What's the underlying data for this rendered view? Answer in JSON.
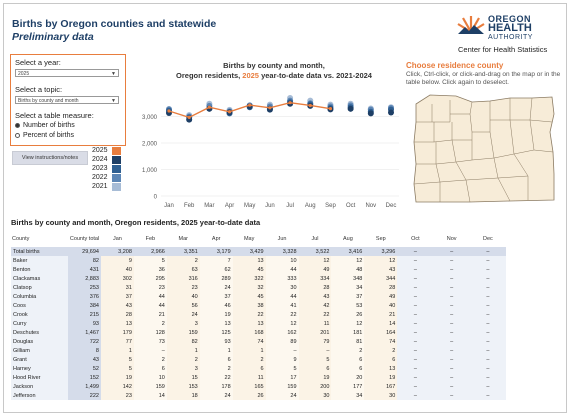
{
  "header": {
    "title": "Births by Oregon counties and statewide",
    "subtitle": "Preliminary data"
  },
  "logo": {
    "line1": "OREGON",
    "line2": "HEALTH",
    "line3": "AUTHORITY",
    "line4": "Center for Health Statistics",
    "color": "#1e3f66",
    "sun_color": "#e87d3e"
  },
  "controls": {
    "year_label": "Select a year:",
    "year_value": "2025",
    "topic_label": "Select a topic:",
    "topic_value": "Births by county and month",
    "measure_label": "Select a table measure:",
    "measure_options": [
      "Number of births",
      "Percent of births"
    ],
    "measure_selected": 0,
    "instructions_button": "View instructions/notes"
  },
  "legend": {
    "items": [
      {
        "label": "2025",
        "color": "#e87d3e"
      },
      {
        "label": "2024",
        "color": "#1e3f66"
      },
      {
        "label": "2023",
        "color": "#2f5f91"
      },
      {
        "label": "2022",
        "color": "#5d86b5"
      },
      {
        "label": "2021",
        "color": "#a7bcd6"
      }
    ]
  },
  "chart_title": {
    "line1": "Births by county and month,",
    "line2_prefix": "Oregon residents, ",
    "line2_year": "2025",
    "line2_suffix": " year-to-date data vs. 2021-2024"
  },
  "chart_data": {
    "type": "line",
    "categories": [
      "Jan",
      "Feb",
      "Mar",
      "Apr",
      "May",
      "Jun",
      "Jul",
      "Aug",
      "Sep",
      "Oct",
      "Nov",
      "Dec"
    ],
    "ylim": [
      0,
      4000
    ],
    "yticks": [
      0,
      1000,
      2000,
      3000
    ],
    "ytick_labels": [
      "0",
      "1,000",
      "2,000",
      "3,000"
    ],
    "series": [
      {
        "name": "2025",
        "color": "#e87d3e",
        "values": [
          3208,
          2966,
          3351,
          3179,
          3429,
          3328,
          3522,
          3416,
          3296,
          null,
          null,
          null
        ]
      },
      {
        "name": "2024",
        "color": "#1e3f66",
        "values": [
          3130,
          2880,
          3290,
          3160,
          3380,
          3260,
          3480,
          3400,
          3270,
          3290,
          3120,
          3150
        ]
      },
      {
        "name": "2023",
        "color": "#2f5f91",
        "values": [
          3220,
          2960,
          3300,
          3120,
          3350,
          3300,
          3540,
          3460,
          3320,
          3350,
          3180,
          3260
        ]
      },
      {
        "name": "2022",
        "color": "#5d86b5",
        "values": [
          3280,
          3000,
          3400,
          3200,
          3420,
          3380,
          3600,
          3500,
          3380,
          3420,
          3260,
          3320
        ]
      },
      {
        "name": "2021",
        "color": "#a7bcd6",
        "values": [
          3180,
          3050,
          3480,
          3250,
          3400,
          3450,
          3700,
          3600,
          3450,
          3480,
          3300,
          3350
        ]
      }
    ]
  },
  "map": {
    "heading": "Choose residence county",
    "instructions": "Click, Ctrl-click, or click-and-drag on the map or in the table below. Click again to deselect.",
    "fill_color": "#f7ecd8",
    "border_color": "#8b7b63"
  },
  "table": {
    "title": "Births by county and month, Oregon residents, 2025 year-to-date data",
    "columns": [
      "County",
      "County total",
      "Jan",
      "Feb",
      "Mar",
      "Apr",
      "May",
      "Jun",
      "Jul",
      "Aug",
      "Sep",
      "Oct",
      "Nov",
      "Dec"
    ],
    "rows": [
      [
        "Total births",
        "29,694",
        "3,208",
        "2,966",
        "3,351",
        "3,179",
        "3,429",
        "3,328",
        "3,522",
        "3,416",
        "3,296",
        "–",
        "–",
        "–"
      ],
      [
        "Baker",
        "82",
        "9",
        "5",
        "2",
        "7",
        "13",
        "10",
        "12",
        "12",
        "12",
        "–",
        "–",
        "–"
      ],
      [
        "Benton",
        "431",
        "40",
        "36",
        "63",
        "62",
        "45",
        "44",
        "49",
        "48",
        "43",
        "–",
        "–",
        "–"
      ],
      [
        "Clackamas",
        "2,883",
        "302",
        "295",
        "316",
        "289",
        "322",
        "333",
        "334",
        "348",
        "344",
        "–",
        "–",
        "–"
      ],
      [
        "Clatsop",
        "253",
        "31",
        "23",
        "23",
        "24",
        "32",
        "30",
        "28",
        "34",
        "28",
        "–",
        "–",
        "–"
      ],
      [
        "Columbia",
        "376",
        "37",
        "44",
        "40",
        "37",
        "45",
        "44",
        "43",
        "37",
        "49",
        "–",
        "–",
        "–"
      ],
      [
        "Coos",
        "384",
        "43",
        "44",
        "56",
        "46",
        "38",
        "41",
        "42",
        "53",
        "40",
        "–",
        "–",
        "–"
      ],
      [
        "Crook",
        "215",
        "28",
        "21",
        "24",
        "19",
        "22",
        "22",
        "22",
        "26",
        "21",
        "–",
        "–",
        "–"
      ],
      [
        "Curry",
        "93",
        "13",
        "2",
        "3",
        "13",
        "13",
        "12",
        "11",
        "12",
        "14",
        "–",
        "–",
        "–"
      ],
      [
        "Deschutes",
        "1,467",
        "179",
        "128",
        "159",
        "125",
        "168",
        "162",
        "201",
        "181",
        "164",
        "–",
        "–",
        "–"
      ],
      [
        "Douglas",
        "722",
        "77",
        "73",
        "82",
        "93",
        "74",
        "89",
        "79",
        "81",
        "74",
        "–",
        "–",
        "–"
      ],
      [
        "Gilliam",
        "8",
        "1",
        "–",
        "1",
        "1",
        "1",
        "–",
        "–",
        "2",
        "2",
        "–",
        "–",
        "–"
      ],
      [
        "Grant",
        "43",
        "5",
        "2",
        "2",
        "6",
        "2",
        "9",
        "5",
        "6",
        "6",
        "–",
        "–",
        "–"
      ],
      [
        "Harney",
        "52",
        "5",
        "6",
        "3",
        "2",
        "6",
        "5",
        "6",
        "6",
        "13",
        "–",
        "–",
        "–"
      ],
      [
        "Hood River",
        "152",
        "19",
        "10",
        "15",
        "22",
        "11",
        "17",
        "19",
        "20",
        "19",
        "–",
        "–",
        "–"
      ],
      [
        "Jackson",
        "1,499",
        "142",
        "159",
        "153",
        "178",
        "165",
        "159",
        "200",
        "177",
        "167",
        "–",
        "–",
        "–"
      ],
      [
        "Jefferson",
        "222",
        "23",
        "14",
        "18",
        "24",
        "26",
        "24",
        "30",
        "34",
        "30",
        "–",
        "–",
        "–"
      ]
    ]
  }
}
